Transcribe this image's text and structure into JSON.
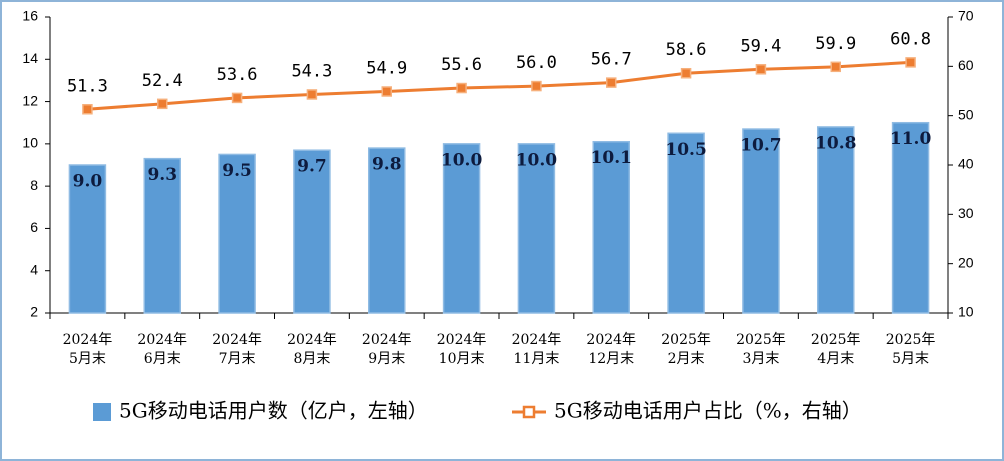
{
  "chart_data": {
    "type": "combo",
    "categories": [
      [
        "2024年",
        "5月末"
      ],
      [
        "2024年",
        "6月末"
      ],
      [
        "2024年",
        "7月末"
      ],
      [
        "2024年",
        "8月末"
      ],
      [
        "2024年",
        "9月末"
      ],
      [
        "2024年",
        "10月末"
      ],
      [
        "2024年",
        "11月末"
      ],
      [
        "2024年",
        "12月末"
      ],
      [
        "2025年",
        "2月末"
      ],
      [
        "2025年",
        "3月末"
      ],
      [
        "2025年",
        "4月末"
      ],
      [
        "2025年",
        "5月末"
      ]
    ],
    "series": [
      {
        "name": "5G移动电话用户数（亿户，左轴）",
        "type": "bar",
        "color": "#5b9bd5",
        "values": [
          9.0,
          9.3,
          9.5,
          9.7,
          9.8,
          10.0,
          10.0,
          10.1,
          10.5,
          10.7,
          10.8,
          11.0
        ],
        "value_labels": [
          "9.0",
          "9.3",
          "9.5",
          "9.7",
          "9.8",
          "10.0",
          "10.0",
          "10.1",
          "10.5",
          "10.7",
          "10.8",
          "11.0"
        ]
      },
      {
        "name": "5G移动电话用户占比（%，右轴）",
        "type": "line",
        "axis": "y2",
        "color": "#ed7d31",
        "values": [
          51.3,
          52.4,
          53.6,
          54.3,
          54.9,
          55.6,
          56.0,
          56.7,
          58.6,
          59.4,
          59.9,
          60.8
        ],
        "value_labels": [
          "51.3",
          "52.4",
          "53.6",
          "54.3",
          "54.9",
          "55.6",
          "56.0",
          "56.7",
          "58.6",
          "59.4",
          "59.9",
          "60.8"
        ]
      }
    ],
    "ylim": [
      2,
      16
    ],
    "yticks": [
      2,
      4,
      6,
      8,
      10,
      12,
      14,
      16
    ],
    "y2lim": [
      10,
      70
    ],
    "y2ticks": [
      10,
      20,
      30,
      40,
      50,
      60,
      70
    ],
    "legend": "bottom"
  }
}
